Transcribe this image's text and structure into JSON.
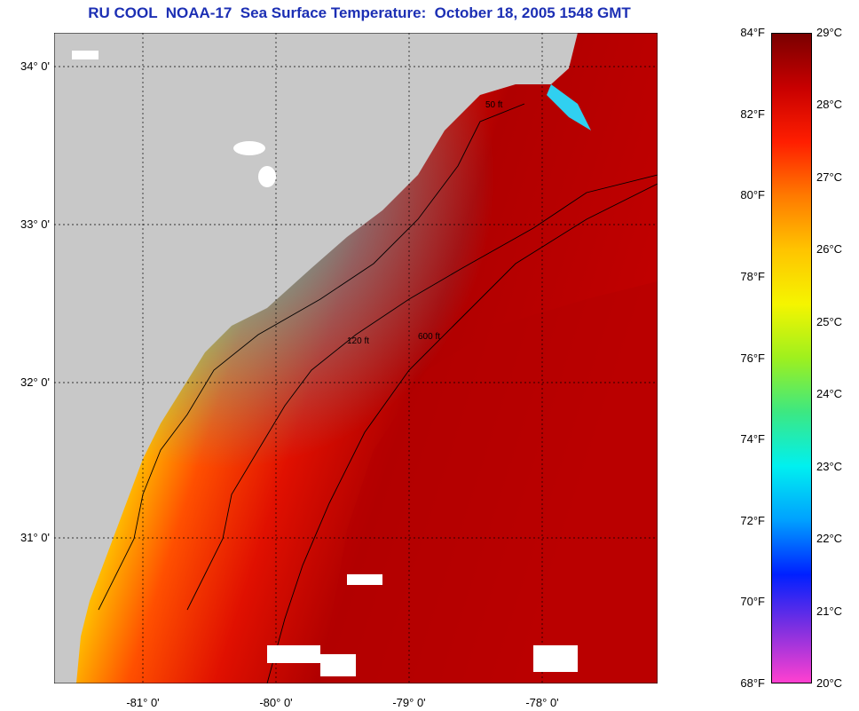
{
  "title": "RU COOL  NOAA-17  Sea Surface Temperature:  October 18, 2005 1548 GMT",
  "latitude_labels": [
    "34° 0'",
    "33° 0'",
    "32° 0'",
    "31° 0'"
  ],
  "longitude_labels": [
    "-81° 0'",
    "-80° 0'",
    "-79° 0'",
    "-78° 0'"
  ],
  "contour_labels": [
    "50 ft",
    "120 ft",
    "600 ft"
  ],
  "colorbar": {
    "fahrenheit": [
      "84°F",
      "82°F",
      "80°F",
      "78°F",
      "76°F",
      "74°F",
      "72°F",
      "70°F",
      "68°F"
    ],
    "celsius": [
      "29°C",
      "28°C",
      "27°C",
      "26°C",
      "25°C",
      "24°C",
      "23°C",
      "22°C",
      "21°C",
      "20°C"
    ],
    "gradient": [
      "#7a0000",
      "#c80000",
      "#ff1e00",
      "#ff7a00",
      "#ffc400",
      "#f5f500",
      "#9ef01e",
      "#3ce882",
      "#00f0f0",
      "#00a0ff",
      "#0020ff",
      "#8030e0",
      "#ff40d0"
    ]
  },
  "colors": {
    "land": "#c8c8c8",
    "title": "#1c2fb4"
  }
}
